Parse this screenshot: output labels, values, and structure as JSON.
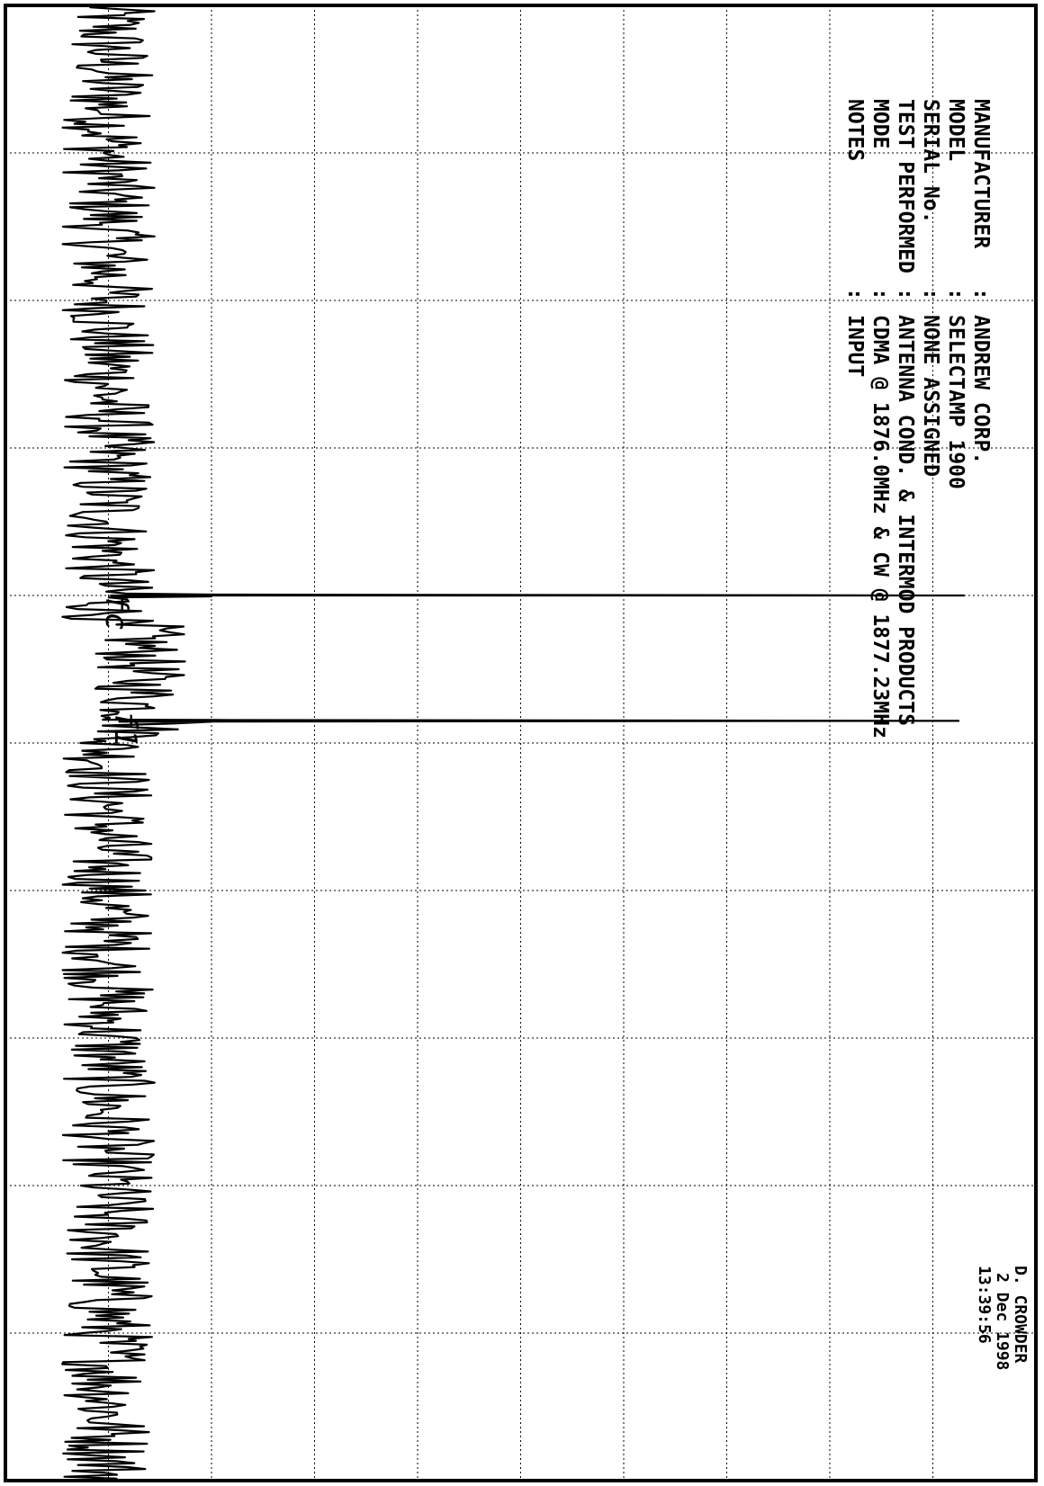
{
  "chart_data": {
    "type": "line",
    "title": "",
    "xlabel": "",
    "ylabel": "",
    "grid": true,
    "orientation": "rotated-90-clockwise",
    "series": [
      {
        "description_visible_only": true,
        "noise_floor": 0.1,
        "noise_amplitude": 0.045,
        "raised_floor_region": [
          0.42,
          0.5
        ],
        "raised_floor": 0.13,
        "peaks": [
          {
            "x": 0.4,
            "y": 0.93
          },
          {
            "x": 0.485,
            "y": 0.925
          }
        ]
      }
    ],
    "xlim": [
      0,
      1
    ],
    "ylim": [
      0,
      1
    ]
  },
  "info": {
    "rows": [
      {
        "key": "MANUFACTURER",
        "value": "ANDREW CORP."
      },
      {
        "key": "MODEL",
        "value": "SELECTAMP 1900"
      },
      {
        "key": "SERIAL No.",
        "value": "NONE ASSIGNED"
      },
      {
        "key": "TEST PERFORMED",
        "value": "ANTENNA COND. & INTERMOD PRODUCTS"
      },
      {
        "key": "MODE",
        "value": "CDMA @ 1876.0MHz & CW @ 1877.23MHz"
      },
      {
        "key": "NOTES",
        "value": "INPUT"
      }
    ]
  },
  "operator": {
    "name": "D. CROWDER",
    "date": "2 Dec 1998",
    "time": "13:39:56"
  },
  "annotations": {
    "fc": "fc",
    "f1": "f1"
  }
}
